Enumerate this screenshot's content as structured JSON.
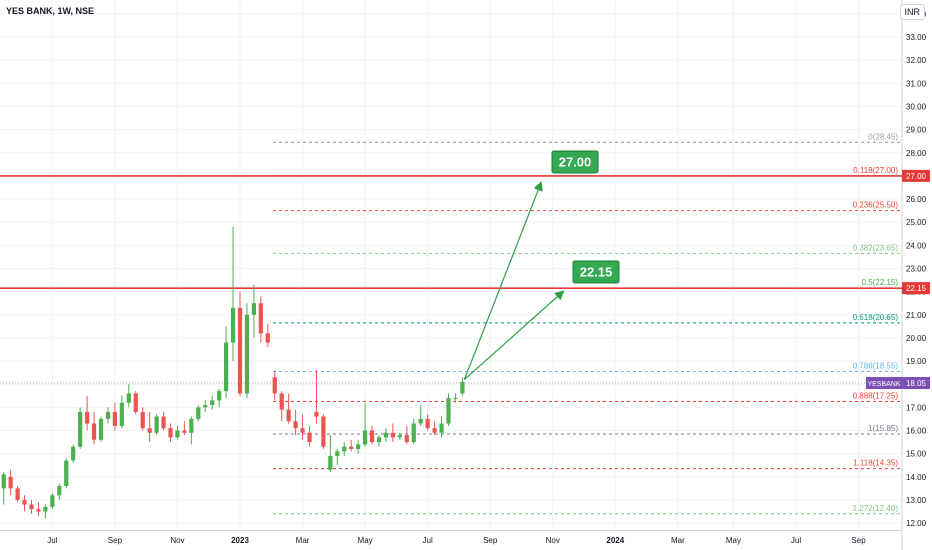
{
  "header": {
    "title": "YES BANK, 1W, NSE",
    "currency": "INR"
  },
  "colors": {
    "up": "#22ab94",
    "up_body": "#26a69a",
    "bull": "#4caf50",
    "down": "#ef5350",
    "resistance": "#e53935",
    "axis": "#131722",
    "grid": "#f0f3fa",
    "target": "#2e9e48"
  },
  "chart_data": {
    "type": "candlestick",
    "title": "YES BANK, 1W, NSE",
    "ylim": [
      11.7,
      34.6
    ],
    "yticks": [
      12,
      13,
      14,
      15,
      16,
      17,
      18,
      19,
      20,
      21,
      22,
      23,
      24,
      25,
      26,
      27,
      28,
      29,
      30,
      31,
      32,
      33,
      34
    ],
    "yticks_labels": [
      "12.00",
      "13.00",
      "14.00",
      "15.00",
      "16.00",
      "17.00",
      "18.00",
      "19.00",
      "20.00",
      "21.00",
      "22.00",
      "23.00",
      "24.00",
      "25.00",
      "26.00",
      "27.00",
      "28.00",
      "29.00",
      "30.00",
      "31.00",
      "32.00",
      "33.00",
      "34.00"
    ],
    "x_ticks": [
      {
        "label": "Jul",
        "week": 7
      },
      {
        "label": "Sep",
        "week": 16
      },
      {
        "label": "Nov",
        "week": 25
      },
      {
        "label": "2023",
        "week": 34
      },
      {
        "label": "Mar",
        "week": 43
      },
      {
        "label": "May",
        "week": 52
      },
      {
        "label": "Jul",
        "week": 61
      },
      {
        "label": "Sep",
        "week": 70
      },
      {
        "label": "Nov",
        "week": 79
      },
      {
        "label": "2024",
        "week": 88
      },
      {
        "label": "Mar",
        "week": 97
      },
      {
        "label": "May",
        "week": 105
      },
      {
        "label": "Jul",
        "week": 114
      },
      {
        "label": "Sep",
        "week": 123
      }
    ],
    "candles": [
      {
        "o": 13.5,
        "h": 14.2,
        "l": 12.8,
        "c": 14.1
      },
      {
        "o": 14.0,
        "h": 14.3,
        "l": 13.2,
        "c": 13.5
      },
      {
        "o": 13.5,
        "h": 13.6,
        "l": 12.9,
        "c": 13.0
      },
      {
        "o": 13.0,
        "h": 13.2,
        "l": 12.5,
        "c": 12.8
      },
      {
        "o": 12.8,
        "h": 13.0,
        "l": 12.4,
        "c": 12.6
      },
      {
        "o": 12.6,
        "h": 12.9,
        "l": 12.3,
        "c": 12.5
      },
      {
        "o": 12.5,
        "h": 12.8,
        "l": 12.2,
        "c": 12.7
      },
      {
        "o": 12.7,
        "h": 13.3,
        "l": 12.6,
        "c": 13.2
      },
      {
        "o": 13.2,
        "h": 13.7,
        "l": 13.0,
        "c": 13.6
      },
      {
        "o": 13.6,
        "h": 14.8,
        "l": 13.5,
        "c": 14.7
      },
      {
        "o": 14.7,
        "h": 15.4,
        "l": 14.6,
        "c": 15.3
      },
      {
        "o": 15.3,
        "h": 17.0,
        "l": 15.2,
        "c": 16.8
      },
      {
        "o": 16.8,
        "h": 17.5,
        "l": 16.0,
        "c": 16.3
      },
      {
        "o": 16.3,
        "h": 16.8,
        "l": 15.4,
        "c": 15.6
      },
      {
        "o": 15.6,
        "h": 16.6,
        "l": 15.5,
        "c": 16.5
      },
      {
        "o": 16.5,
        "h": 17.0,
        "l": 16.3,
        "c": 16.8
      },
      {
        "o": 16.8,
        "h": 17.2,
        "l": 16.0,
        "c": 16.2
      },
      {
        "o": 16.2,
        "h": 17.5,
        "l": 16.1,
        "c": 17.2
      },
      {
        "o": 17.2,
        "h": 18.0,
        "l": 17.0,
        "c": 17.6
      },
      {
        "o": 17.6,
        "h": 17.7,
        "l": 16.7,
        "c": 16.8
      },
      {
        "o": 16.8,
        "h": 17.0,
        "l": 16.0,
        "c": 16.1
      },
      {
        "o": 16.1,
        "h": 16.8,
        "l": 15.5,
        "c": 15.9
      },
      {
        "o": 15.9,
        "h": 16.7,
        "l": 15.8,
        "c": 16.6
      },
      {
        "o": 16.6,
        "h": 16.8,
        "l": 16.0,
        "c": 16.1
      },
      {
        "o": 16.1,
        "h": 16.3,
        "l": 15.5,
        "c": 15.7
      },
      {
        "o": 15.7,
        "h": 16.2,
        "l": 15.6,
        "c": 16.0
      },
      {
        "o": 16.0,
        "h": 16.4,
        "l": 15.8,
        "c": 15.9
      },
      {
        "o": 15.9,
        "h": 16.6,
        "l": 15.4,
        "c": 16.5
      },
      {
        "o": 16.5,
        "h": 17.1,
        "l": 16.4,
        "c": 17.0
      },
      {
        "o": 17.0,
        "h": 17.3,
        "l": 16.8,
        "c": 17.1
      },
      {
        "o": 17.1,
        "h": 17.5,
        "l": 16.9,
        "c": 17.3
      },
      {
        "o": 17.3,
        "h": 17.8,
        "l": 17.0,
        "c": 17.7
      },
      {
        "o": 17.7,
        "h": 20.5,
        "l": 17.4,
        "c": 19.8
      },
      {
        "o": 19.8,
        "h": 24.8,
        "l": 19.0,
        "c": 21.3
      },
      {
        "o": 21.3,
        "h": 22.0,
        "l": 17.5,
        "c": 17.6
      },
      {
        "o": 17.6,
        "h": 21.5,
        "l": 17.4,
        "c": 21.0
      },
      {
        "o": 21.0,
        "h": 22.3,
        "l": 20.0,
        "c": 21.5
      },
      {
        "o": 21.5,
        "h": 21.8,
        "l": 19.8,
        "c": 20.2
      },
      {
        "o": 20.2,
        "h": 20.6,
        "l": 19.6,
        "c": 19.8
      },
      {
        "o": 18.3,
        "h": 18.6,
        "l": 17.3,
        "c": 17.6
      },
      {
        "o": 17.6,
        "h": 17.7,
        "l": 16.4,
        "c": 16.9
      },
      {
        "o": 16.9,
        "h": 17.6,
        "l": 16.3,
        "c": 16.4
      },
      {
        "o": 16.4,
        "h": 16.9,
        "l": 15.8,
        "c": 16.1
      },
      {
        "o": 16.1,
        "h": 16.7,
        "l": 15.6,
        "c": 15.9
      },
      {
        "o": 15.9,
        "h": 16.2,
        "l": 15.3,
        "c": 15.5
      },
      {
        "o": 16.8,
        "h": 18.6,
        "l": 16.3,
        "c": 16.6
      },
      {
        "o": 16.6,
        "h": 16.7,
        "l": 15.2,
        "c": 15.3
      },
      {
        "o": 14.3,
        "h": 15.8,
        "l": 14.2,
        "c": 14.9
      },
      {
        "o": 14.9,
        "h": 15.2,
        "l": 14.5,
        "c": 15.1
      },
      {
        "o": 15.1,
        "h": 15.5,
        "l": 14.9,
        "c": 15.3
      },
      {
        "o": 15.3,
        "h": 15.6,
        "l": 15.1,
        "c": 15.2
      },
      {
        "o": 15.2,
        "h": 15.6,
        "l": 15.0,
        "c": 15.4
      },
      {
        "o": 15.4,
        "h": 17.2,
        "l": 15.3,
        "c": 16.0
      },
      {
        "o": 16.0,
        "h": 16.2,
        "l": 15.4,
        "c": 15.5
      },
      {
        "o": 15.5,
        "h": 15.8,
        "l": 15.3,
        "c": 15.7
      },
      {
        "o": 15.7,
        "h": 16.1,
        "l": 15.5,
        "c": 15.9
      },
      {
        "o": 15.9,
        "h": 16.3,
        "l": 15.5,
        "c": 15.7
      },
      {
        "o": 15.7,
        "h": 15.9,
        "l": 15.6,
        "c": 15.8
      },
      {
        "o": 15.8,
        "h": 16.2,
        "l": 15.4,
        "c": 15.5
      },
      {
        "o": 15.5,
        "h": 16.5,
        "l": 15.4,
        "c": 16.3
      },
      {
        "o": 16.3,
        "h": 17.1,
        "l": 16.2,
        "c": 16.5
      },
      {
        "o": 16.5,
        "h": 16.7,
        "l": 16.0,
        "c": 16.1
      },
      {
        "o": 16.1,
        "h": 16.4,
        "l": 15.8,
        "c": 15.9
      },
      {
        "o": 15.9,
        "h": 16.6,
        "l": 15.7,
        "c": 16.3
      },
      {
        "o": 16.3,
        "h": 17.6,
        "l": 16.2,
        "c": 17.4
      },
      {
        "o": 17.4,
        "h": 17.6,
        "l": 17.2,
        "c": 17.4
      },
      {
        "o": 17.6,
        "h": 18.3,
        "l": 17.5,
        "c": 18.1
      }
    ],
    "fib_levels": [
      {
        "label": "0(28.45)",
        "value": 28.45,
        "color": "#9e9e9e"
      },
      {
        "label": "0.118(27.00)",
        "value": 27.0,
        "color": "#e53935"
      },
      {
        "label": "0.236(25.50)",
        "value": 25.5,
        "color": "#f44336"
      },
      {
        "label": "0.382(23.65)",
        "value": 23.65,
        "color": "#81c784"
      },
      {
        "label": "0.5(22.15)",
        "value": 22.15,
        "color": "#4caf50"
      },
      {
        "label": "0.618(20.65)",
        "value": 20.65,
        "color": "#089981"
      },
      {
        "label": "0.786(18.55)",
        "value": 18.55,
        "color": "#64b5f6"
      },
      {
        "label": "0.888(17.25)",
        "value": 17.25,
        "color": "#f44336"
      },
      {
        "label": "1(15.85)",
        "value": 15.85,
        "color": "#787b86"
      },
      {
        "label": "1.118(14.35)",
        "value": 14.35,
        "color": "#f44336"
      },
      {
        "label": "1.272(12.40)",
        "value": 12.4,
        "color": "#81c784"
      }
    ],
    "resistance_lines": [
      {
        "value": 27.0,
        "label": "27.00"
      },
      {
        "value": 22.15,
        "label": "22.15"
      }
    ],
    "targets": [
      {
        "label": "27.00",
        "value": 27.0
      },
      {
        "label": "22.15",
        "value": 22.15
      }
    ],
    "current": {
      "symbol": "YESBANK",
      "value": 18.05,
      "label": "18.05"
    }
  }
}
